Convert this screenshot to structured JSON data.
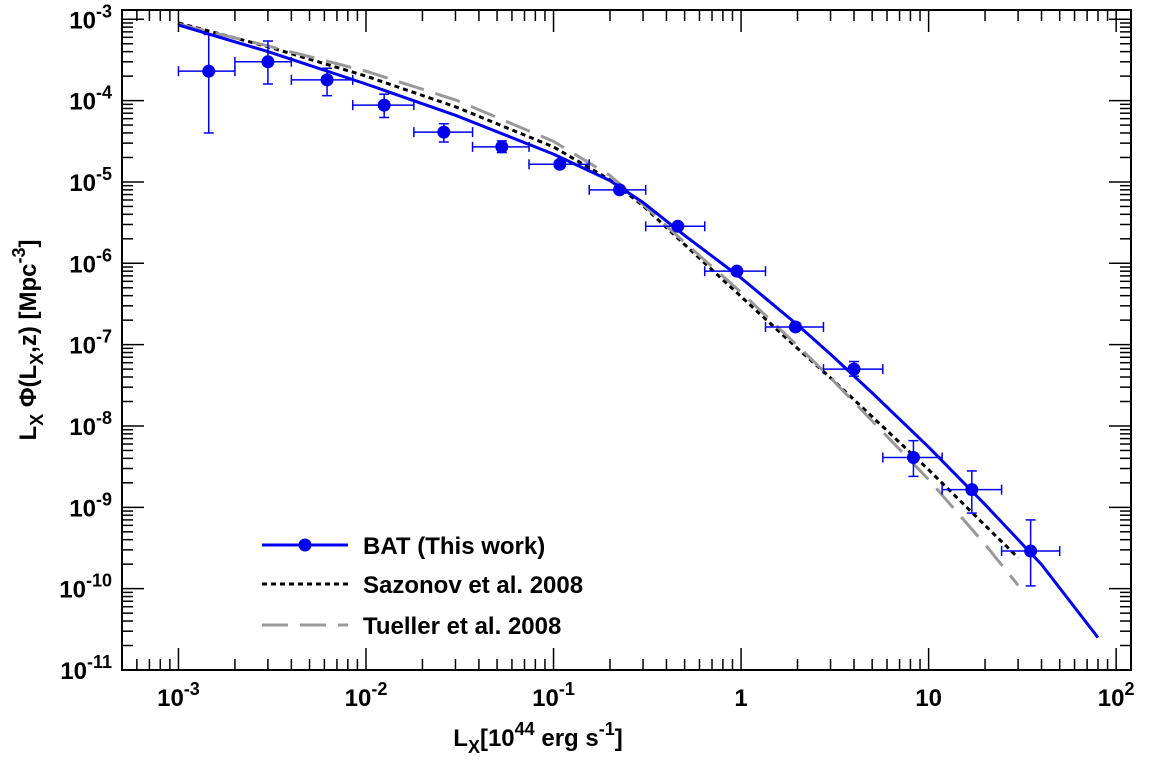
{
  "chart_data": {
    "type": "scatter",
    "xlabel": "L_X[10^44 erg s^-1]",
    "ylabel": "L_X Φ(L_X,z) [Mpc^-3]",
    "xlim": [
      0.0005,
      120
    ],
    "ylim": [
      1e-11,
      0.0013
    ],
    "xscale": "log",
    "yscale": "log",
    "grid": false,
    "legend_position": "bottom-left",
    "x_ticks": [
      {
        "value": 0.001,
        "base": "10",
        "exp": "-3"
      },
      {
        "value": 0.01,
        "base": "10",
        "exp": "-2"
      },
      {
        "value": 0.1,
        "base": "10",
        "exp": "-1"
      },
      {
        "value": 1,
        "base": "1",
        "exp": ""
      },
      {
        "value": 10,
        "base": "10",
        "exp": ""
      },
      {
        "value": 100,
        "base": "10",
        "exp": "2"
      }
    ],
    "y_ticks": [
      {
        "value": 0.001,
        "base": "10",
        "exp": "-3"
      },
      {
        "value": 0.0001,
        "base": "10",
        "exp": "-4"
      },
      {
        "value": 1e-05,
        "base": "10",
        "exp": "-5"
      },
      {
        "value": 1e-06,
        "base": "10",
        "exp": "-6"
      },
      {
        "value": 1e-07,
        "base": "10",
        "exp": "-7"
      },
      {
        "value": 1e-08,
        "base": "10",
        "exp": "-8"
      },
      {
        "value": 1e-09,
        "base": "10",
        "exp": "-9"
      },
      {
        "value": 1e-10,
        "base": "10",
        "exp": "-10"
      },
      {
        "value": 1e-11,
        "base": "10",
        "exp": "-11"
      }
    ],
    "series": [
      {
        "name": "BAT (This work)",
        "kind": "points-with-errors",
        "color": "#0000ee",
        "points": [
          {
            "x": 0.00145,
            "xerr": [
              0.001,
              0.002
            ],
            "y": 0.00023,
            "yerr": [
              4e-05,
              0.00065
            ]
          },
          {
            "x": 0.003,
            "xerr": [
              0.002,
              0.004
            ],
            "y": 0.0003,
            "yerr": [
              0.00016,
              0.00054
            ]
          },
          {
            "x": 0.0062,
            "xerr": [
              0.004,
              0.0085
            ],
            "y": 0.00018,
            "yerr": [
              0.000115,
              0.00025
            ]
          },
          {
            "x": 0.0125,
            "xerr": [
              0.0085,
              0.018
            ],
            "y": 8.8e-05,
            "yerr": [
              6.2e-05,
              0.00012
            ]
          },
          {
            "x": 0.026,
            "xerr": [
              0.018,
              0.037
            ],
            "y": 4.1e-05,
            "yerr": [
              3.1e-05,
              5.2e-05
            ]
          },
          {
            "x": 0.053,
            "xerr": [
              0.037,
              0.074
            ],
            "y": 2.7e-05,
            "yerr": [
              2.3e-05,
              3.2e-05
            ]
          },
          {
            "x": 0.108,
            "xerr": [
              0.074,
              0.155
            ],
            "y": 1.65e-05,
            "yerr": [
              1.5e-05,
              1.8e-05
            ]
          },
          {
            "x": 0.225,
            "xerr": [
              0.155,
              0.31
            ],
            "y": 8e-06,
            "yerr": [
              7.5e-06,
              8.5e-06
            ]
          },
          {
            "x": 0.46,
            "xerr": [
              0.31,
              0.64
            ],
            "y": 2.85e-06,
            "yerr": [
              2.65e-06,
              3.05e-06
            ]
          },
          {
            "x": 0.95,
            "xerr": [
              0.64,
              1.35
            ],
            "y": 8e-07,
            "yerr": [
              7.4e-07,
              8.6e-07
            ]
          },
          {
            "x": 1.95,
            "xerr": [
              1.35,
              2.75
            ],
            "y": 1.65e-07,
            "yerr": [
              1.5e-07,
              1.85e-07
            ]
          },
          {
            "x": 4.0,
            "xerr": [
              2.75,
              5.7
            ],
            "y": 5e-08,
            "yerr": [
              4.1e-08,
              6.2e-08
            ]
          },
          {
            "x": 8.3,
            "xerr": [
              5.7,
              11.8
            ],
            "y": 4.1e-09,
            "yerr": [
              2.4e-09,
              6.6e-09
            ]
          },
          {
            "x": 17.0,
            "xerr": [
              11.8,
              24.5
            ],
            "y": 1.65e-09,
            "yerr": [
              8.5e-10,
              2.8e-09
            ]
          },
          {
            "x": 35.0,
            "xerr": [
              24.5,
              50
            ],
            "y": 2.9e-10,
            "yerr": [
              1.08e-10,
              7e-10
            ]
          }
        ],
        "curve": {
          "x": [
            0.001,
            0.003,
            0.01,
            0.03,
            0.1,
            0.2,
            0.3,
            0.5,
            1,
            2,
            3,
            5,
            10,
            20,
            40,
            80
          ],
          "y": [
            0.00085,
            0.0004,
            0.00016,
            6.6e-05,
            2.2e-05,
            1.04e-05,
            5.6e-06,
            2.2e-06,
            6.6e-07,
            1.75e-07,
            7.6e-08,
            2.55e-08,
            5.5e-09,
            1.08e-09,
            1.98e-10,
            2.5e-11
          ]
        }
      },
      {
        "name": "Sazonov et al. 2008",
        "kind": "line",
        "color": "#000000",
        "dash": "5,4",
        "curve": {
          "x": [
            0.001,
            0.003,
            0.01,
            0.03,
            0.1,
            0.2,
            0.3,
            0.5,
            1,
            2,
            3,
            5,
            10,
            20,
            30
          ],
          "y": [
            0.0009,
            0.00046,
            0.0002,
            8.4e-05,
            2.7e-05,
            1.06e-05,
            5.1e-06,
            1.7e-06,
            3.9e-07,
            9e-08,
            3.9e-08,
            1.3e-08,
            2.9e-09,
            6e-10,
            2.4e-10
          ]
        }
      },
      {
        "name": "Tueller et al. 2008",
        "kind": "line",
        "color": "#999999",
        "dash": "26,12",
        "curve": {
          "x": [
            0.001,
            0.003,
            0.01,
            0.03,
            0.1,
            0.2,
            0.3,
            0.5,
            1,
            2,
            3,
            5,
            10,
            20,
            30
          ],
          "y": [
            0.00087,
            0.00047,
            0.00023,
            0.000102,
            3.15e-05,
            1.2e-05,
            5.3e-06,
            1.8e-06,
            4.4e-07,
            9.7e-08,
            3.9e-08,
            1.15e-08,
            2.2e-09,
            3.5e-10,
            1.1e-10
          ]
        }
      }
    ]
  }
}
